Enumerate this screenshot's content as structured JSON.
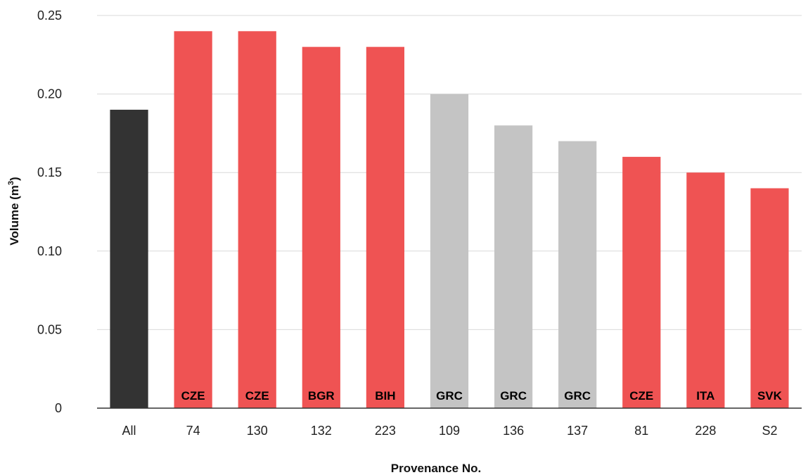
{
  "chart_data": {
    "type": "bar",
    "title": "",
    "xlabel": "Provenance No.",
    "ylabel": "Volume (m",
    "ylabel_superscript": "3",
    "ylabel_close": ")",
    "ylim": [
      0,
      0.25
    ],
    "yticks": [
      "0",
      "0.05",
      "0.10",
      "0.15",
      "0.20",
      "0.25"
    ],
    "ytick_values": [
      0,
      0.05,
      0.1,
      0.15,
      0.2,
      0.25
    ],
    "grid": "horizontal",
    "categories": [
      "All",
      "74",
      "130",
      "132",
      "223",
      "109",
      "136",
      "137",
      "81",
      "228",
      "S2"
    ],
    "values": [
      0.19,
      0.24,
      0.24,
      0.23,
      0.23,
      0.2,
      0.18,
      0.17,
      0.16,
      0.15,
      0.14
    ],
    "bar_labels": [
      "",
      "CZE",
      "CZE",
      "BGR",
      "BIH",
      "GRC",
      "GRC",
      "GRC",
      "CZE",
      "ITA",
      "SVK"
    ],
    "bar_colors": [
      "#333333",
      "#ef5353",
      "#ef5353",
      "#ef5353",
      "#ef5353",
      "#c4c4c4",
      "#c4c4c4",
      "#c4c4c4",
      "#ef5353",
      "#ef5353",
      "#ef5353"
    ],
    "colors": {
      "overall": "#333333",
      "highlight": "#ef5353",
      "neutral": "#c4c4c4",
      "gridline": "#d9d9d9",
      "axis": "#333333"
    }
  }
}
